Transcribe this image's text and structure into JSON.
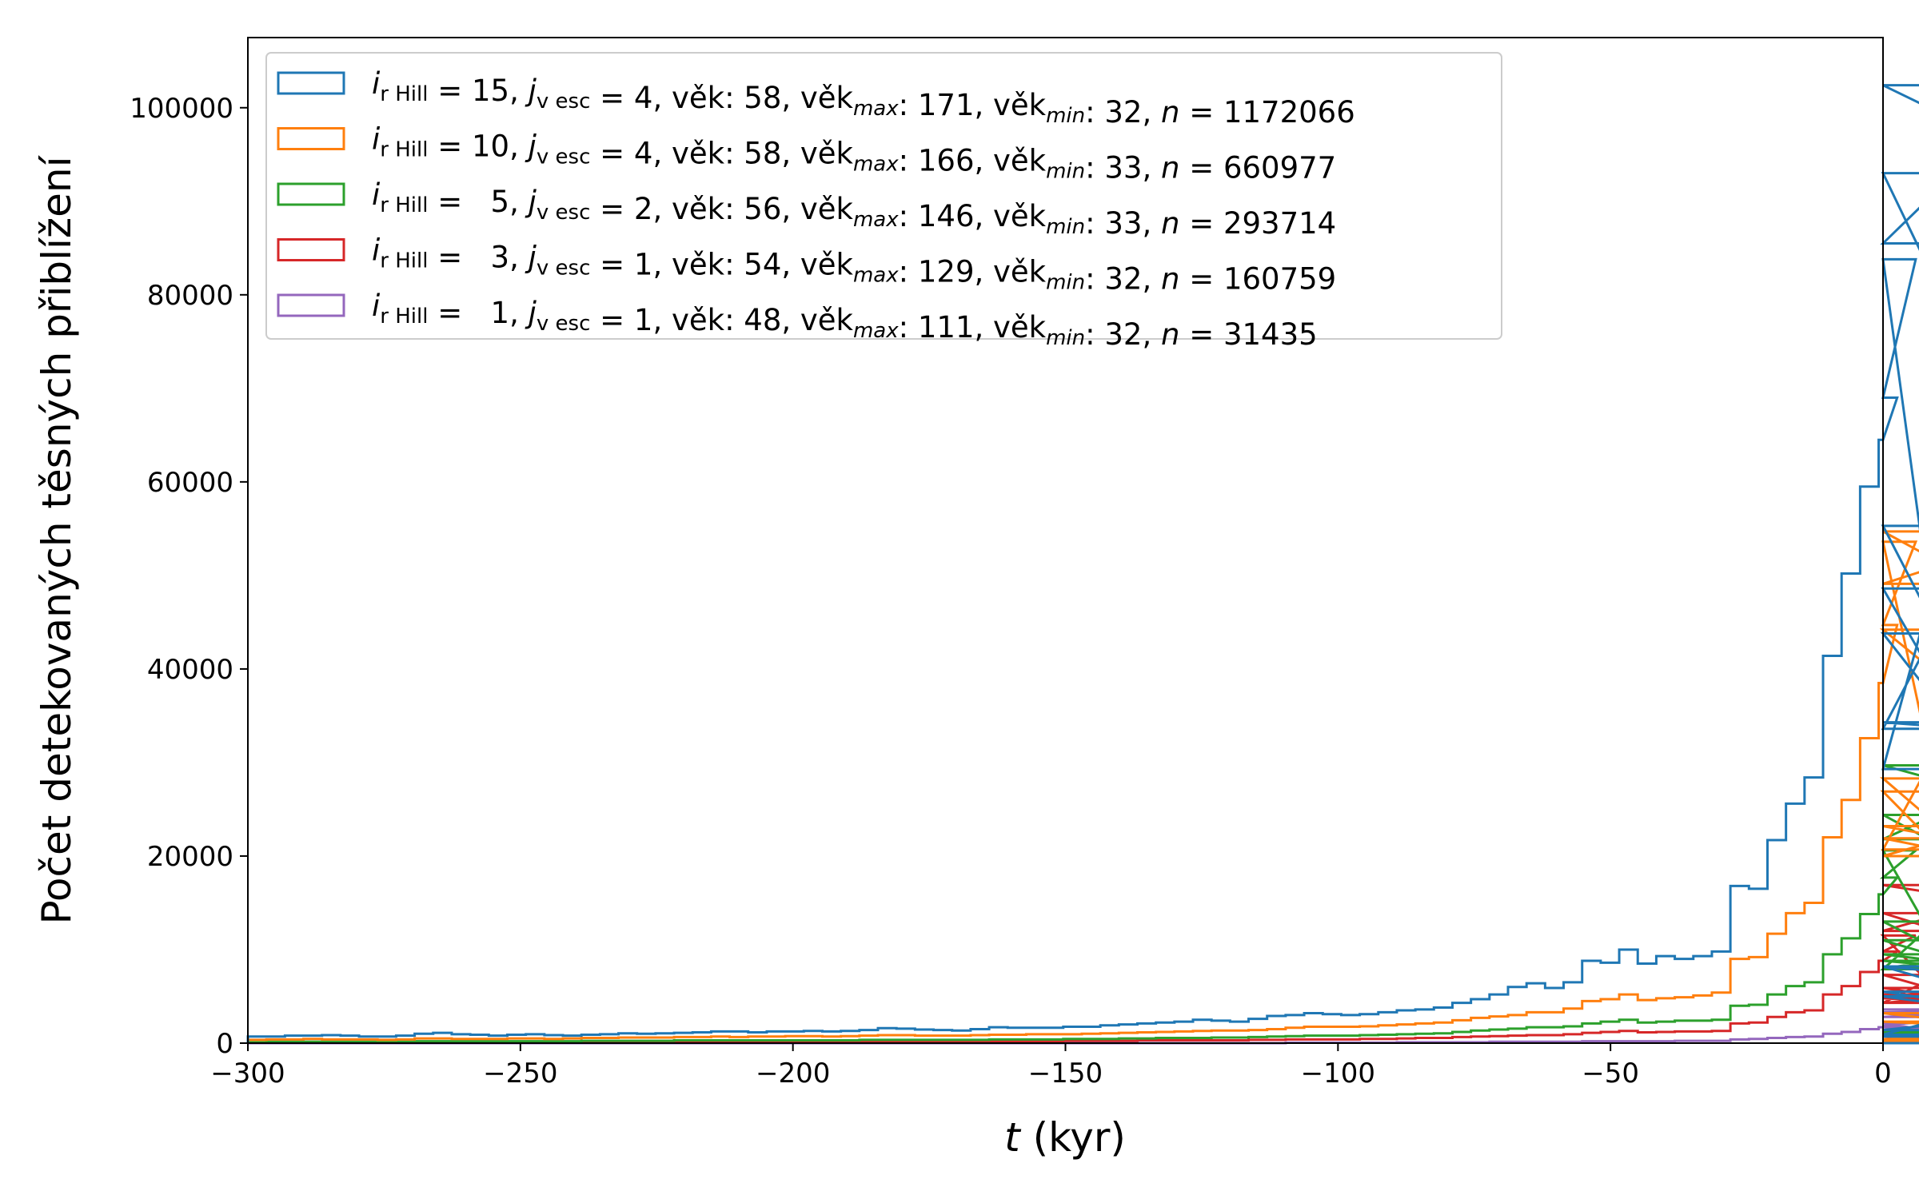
{
  "chart_data": {
    "type": "histogram-step",
    "xlabel": "t (kyr)",
    "ylabel": "Počet detekovaných těsných přiblížení",
    "xlim": [
      -300,
      0
    ],
    "ylim": [
      0,
      107500
    ],
    "xticks": [
      -300,
      -250,
      -200,
      -150,
      -100,
      -50,
      0
    ],
    "yticks": [
      0,
      20000,
      40000,
      60000,
      80000,
      100000
    ],
    "xtick_labels": [
      "−300",
      "−250",
      "−200",
      "−150",
      "−100",
      "−50",
      "0"
    ],
    "ytick_labels": [
      "0",
      "20000",
      "40000",
      "60000",
      "80000",
      "100000"
    ],
    "bin_start": -300,
    "bin_width": 3.4,
    "grid": false,
    "legend_position": "top-left",
    "series": [
      {
        "name": "iᵣHill = 15, jᵥesc = 4, věk: 58, věkmax: 171, věkmin: 32, n = 1172066",
        "legend": {
          "i": "15",
          "j": "4",
          "vek": "58",
          "vekmax": "171",
          "vekmin": "32",
          "n": "1172066",
          "i_pad": false
        },
        "color": "#1f77b4",
        "values": [
          700,
          700,
          800,
          800,
          850,
          800,
          700,
          700,
          800,
          1000,
          1100,
          950,
          900,
          800,
          900,
          950,
          850,
          800,
          900,
          950,
          1050,
          1000,
          1050,
          1100,
          1150,
          1250,
          1250,
          1150,
          1250,
          1250,
          1300,
          1250,
          1300,
          1400,
          1600,
          1550,
          1450,
          1400,
          1350,
          1500,
          1700,
          1650,
          1650,
          1650,
          1750,
          1750,
          1900,
          2000,
          2100,
          2200,
          2300,
          2500,
          2400,
          2300,
          2600,
          2900,
          3000,
          3200,
          3100,
          3000,
          3100,
          3300,
          3500,
          3600,
          3800,
          4300,
          4700,
          5200,
          6000,
          6400,
          5900,
          6500,
          8800,
          8600,
          10000,
          8500,
          9300,
          9000,
          9300,
          9800,
          16800,
          16500,
          21700,
          25600,
          28400,
          41400,
          50200,
          59500,
          64500,
          69000,
          83800,
          43800,
          34300,
          33600,
          55300,
          29300,
          85500,
          102400,
          93000,
          48600,
          8200,
          900,
          8200,
          5500,
          700,
          1400,
          5000,
          0,
          0,
          0,
          0,
          0,
          0,
          0,
          0,
          0,
          0
        ]
      },
      {
        "name": "iᵣHill = 10, jᵥesc = 4, věk: 58, věkmax: 166, věkmin: 33, n = 660977",
        "legend": {
          "i": "10",
          "j": "4",
          "vek": "58",
          "vekmax": "166",
          "vekmin": "33",
          "n": "660977",
          "i_pad": false
        },
        "color": "#ff7f0e",
        "values": [
          350,
          400,
          400,
          450,
          400,
          400,
          400,
          350,
          400,
          500,
          500,
          450,
          450,
          450,
          500,
          500,
          450,
          500,
          550,
          550,
          600,
          600,
          600,
          650,
          650,
          700,
          650,
          700,
          700,
          750,
          750,
          700,
          750,
          800,
          850,
          850,
          800,
          800,
          800,
          850,
          900,
          900,
          950,
          950,
          950,
          1000,
          1050,
          1100,
          1150,
          1200,
          1250,
          1300,
          1350,
          1350,
          1400,
          1500,
          1650,
          1750,
          1750,
          1750,
          1800,
          1900,
          2000,
          2100,
          2200,
          2450,
          2700,
          2850,
          3000,
          3300,
          3300,
          3700,
          4500,
          4700,
          5200,
          4600,
          4800,
          4900,
          5100,
          5400,
          9000,
          9200,
          11700,
          13900,
          15000,
          22000,
          26000,
          32600,
          38500,
          44700,
          53600,
          28300,
          21900,
          20000,
          23200,
          20700,
          49100,
          54700,
          44200,
          26900,
          3200,
          400,
          2300,
          900,
          200,
          0,
          0,
          0,
          0,
          0,
          0,
          0,
          0,
          0,
          0,
          0,
          0
        ]
      },
      {
        "name": "iᵣHill = 5, jᵥesc = 2, věk: 56, věkmax: 146, věkmin: 33, n = 293714",
        "legend": {
          "i": "5",
          "j": "2",
          "vek": "56",
          "vekmax": "146",
          "vekmin": "33",
          "n": "293714",
          "i_pad": true
        },
        "color": "#2ca02c",
        "values": [
          100,
          150,
          150,
          150,
          150,
          150,
          150,
          150,
          150,
          200,
          200,
          200,
          200,
          200,
          200,
          200,
          200,
          200,
          250,
          250,
          250,
          250,
          250,
          300,
          300,
          300,
          300,
          300,
          300,
          300,
          300,
          300,
          300,
          350,
          350,
          350,
          350,
          350,
          350,
          350,
          400,
          400,
          400,
          400,
          450,
          450,
          450,
          500,
          500,
          550,
          550,
          550,
          600,
          600,
          650,
          700,
          750,
          800,
          800,
          800,
          850,
          900,
          950,
          1000,
          1050,
          1200,
          1350,
          1450,
          1550,
          1700,
          1700,
          1800,
          2100,
          2300,
          2500,
          2200,
          2300,
          2400,
          2400,
          2500,
          4000,
          4100,
          5200,
          6100,
          6500,
          9500,
          11200,
          13800,
          15900,
          17700,
          20600,
          11000,
          8800,
          8000,
          9500,
          7900,
          21800,
          29700,
          24400,
          13000,
          1200,
          0,
          0,
          0,
          0,
          0,
          0,
          0,
          0,
          0,
          0,
          0,
          0,
          0,
          0,
          0,
          0
        ]
      },
      {
        "name": "iᵣHill = 3, jᵥesc = 1, věk: 54, věkmax: 129, věkmin: 32, n = 160759",
        "legend": {
          "i": "3",
          "j": "1",
          "vek": "54",
          "vekmax": "129",
          "vekmin": "32",
          "n": "160759",
          "i_pad": true
        },
        "color": "#d62728",
        "values": [
          50,
          50,
          50,
          50,
          50,
          50,
          50,
          50,
          50,
          100,
          100,
          100,
          100,
          100,
          100,
          100,
          100,
          100,
          100,
          100,
          100,
          100,
          100,
          150,
          150,
          150,
          150,
          150,
          150,
          150,
          150,
          150,
          150,
          200,
          200,
          200,
          200,
          200,
          200,
          200,
          200,
          200,
          200,
          200,
          250,
          250,
          250,
          250,
          300,
          300,
          300,
          300,
          300,
          300,
          350,
          350,
          400,
          400,
          400,
          400,
          450,
          450,
          500,
          550,
          550,
          650,
          700,
          750,
          800,
          850,
          850,
          950,
          1100,
          1200,
          1300,
          1150,
          1200,
          1250,
          1250,
          1300,
          2100,
          2200,
          2800,
          3300,
          3500,
          5200,
          6100,
          7600,
          8800,
          9800,
          11500,
          5900,
          4800,
          4300,
          5200,
          4300,
          12000,
          16900,
          13900,
          7300,
          700,
          0,
          0,
          0,
          0,
          0,
          0,
          0,
          0,
          0,
          0,
          0,
          0,
          0,
          0,
          0,
          0
        ]
      },
      {
        "name": "iᵣHill = 1, jᵥesc = 1, věk: 48, věkmax: 111, věkmin: 32, n = 31435",
        "legend": {
          "i": "1",
          "j": "1",
          "vek": "48",
          "vekmax": "111",
          "vekmin": "32",
          "n": "31435",
          "i_pad": true
        },
        "color": "#9467bd",
        "values": [
          0,
          0,
          0,
          0,
          0,
          0,
          0,
          0,
          0,
          0,
          0,
          0,
          0,
          0,
          0,
          0,
          0,
          0,
          0,
          0,
          0,
          0,
          0,
          0,
          0,
          0,
          0,
          0,
          0,
          0,
          0,
          0,
          0,
          0,
          0,
          0,
          0,
          0,
          0,
          0,
          0,
          0,
          0,
          0,
          0,
          0,
          0,
          0,
          0,
          0,
          0,
          0,
          0,
          0,
          0,
          0,
          50,
          50,
          50,
          50,
          50,
          50,
          100,
          100,
          100,
          100,
          100,
          150,
          150,
          150,
          150,
          150,
          200,
          200,
          200,
          200,
          200,
          250,
          250,
          250,
          400,
          450,
          550,
          650,
          700,
          1000,
          1200,
          1500,
          1700,
          1900,
          2200,
          1200,
          1000,
          900,
          1000,
          900,
          2800,
          3600,
          3300,
          1700,
          200,
          0,
          0,
          0,
          0,
          0,
          0,
          0,
          0,
          0,
          0,
          0,
          0,
          0,
          0,
          0,
          0
        ]
      }
    ]
  }
}
